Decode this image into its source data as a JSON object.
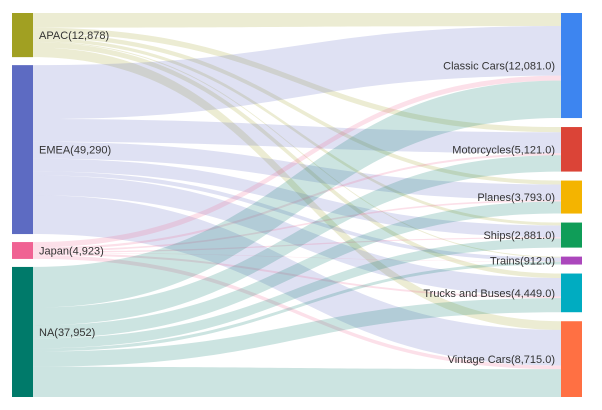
{
  "chart_data": {
    "type": "sankey",
    "left_nodes": [
      {
        "id": "APAC",
        "label": "APAC(12,878)",
        "value": 12878,
        "color": "#A1A022"
      },
      {
        "id": "EMEA",
        "label": "EMEA(49,290)",
        "value": 49290,
        "color": "#5D6BC2"
      },
      {
        "id": "Japan",
        "label": "Japan(4,923)",
        "value": 4923,
        "color": "#F06293"
      },
      {
        "id": "NA",
        "label": "NA(37,952)",
        "value": 37952,
        "color": "#007A6A"
      }
    ],
    "right_nodes": [
      {
        "id": "Classic Cars",
        "label": "Classic Cars(12,081.0)",
        "value": 12081.0,
        "color": "#3D85F0"
      },
      {
        "id": "Motorcycles",
        "label": "Motorcycles(5,121.0)",
        "value": 5121.0,
        "color": "#DB4437"
      },
      {
        "id": "Planes",
        "label": "Planes(3,793.0)",
        "value": 3793.0,
        "color": "#F4B400"
      },
      {
        "id": "Ships",
        "label": "Ships(2,881.0)",
        "value": 2881.0,
        "color": "#0F9D58"
      },
      {
        "id": "Trains",
        "label": "Trains(912.0)",
        "value": 912.0,
        "color": "#AB47BC"
      },
      {
        "id": "Trucks and Buses",
        "label": "Trucks and Buses(4,449.0)",
        "value": 4449.0,
        "color": "#00ACC1"
      },
      {
        "id": "Vintage Cars",
        "label": "Vintage Cars(8,715.0)",
        "value": 8715.0,
        "color": "#FF7043"
      }
    ],
    "links": [
      {
        "source": "APAC",
        "target": "Classic Cars",
        "value": 1500
      },
      {
        "source": "APAC",
        "target": "Motorcycles",
        "value": 600
      },
      {
        "source": "APAC",
        "target": "Planes",
        "value": 450
      },
      {
        "source": "APAC",
        "target": "Ships",
        "value": 340
      },
      {
        "source": "APAC",
        "target": "Trains",
        "value": 110
      },
      {
        "source": "APAC",
        "target": "Trucks and Buses",
        "value": 520
      },
      {
        "source": "APAC",
        "target": "Vintage Cars",
        "value": 1000
      },
      {
        "source": "EMEA",
        "target": "Classic Cars",
        "value": 5700
      },
      {
        "source": "EMEA",
        "target": "Motorcycles",
        "value": 2400
      },
      {
        "source": "EMEA",
        "target": "Planes",
        "value": 1780
      },
      {
        "source": "EMEA",
        "target": "Ships",
        "value": 1350
      },
      {
        "source": "EMEA",
        "target": "Trains",
        "value": 430
      },
      {
        "source": "EMEA",
        "target": "Trucks and Buses",
        "value": 2100
      },
      {
        "source": "EMEA",
        "target": "Vintage Cars",
        "value": 4100
      },
      {
        "source": "Japan",
        "target": "Classic Cars",
        "value": 580
      },
      {
        "source": "Japan",
        "target": "Motorcycles",
        "value": 240
      },
      {
        "source": "Japan",
        "target": "Planes",
        "value": 180
      },
      {
        "source": "Japan",
        "target": "Ships",
        "value": 140
      },
      {
        "source": "Japan",
        "target": "Trains",
        "value": 44
      },
      {
        "source": "Japan",
        "target": "Trucks and Buses",
        "value": 214
      },
      {
        "source": "Japan",
        "target": "Vintage Cars",
        "value": 415
      },
      {
        "source": "NA",
        "target": "Classic Cars",
        "value": 4301
      },
      {
        "source": "NA",
        "target": "Motorcycles",
        "value": 1881
      },
      {
        "source": "NA",
        "target": "Planes",
        "value": 1383
      },
      {
        "source": "NA",
        "target": "Ships",
        "value": 1051
      },
      {
        "source": "NA",
        "target": "Trains",
        "value": 328
      },
      {
        "source": "NA",
        "target": "Trucks and Buses",
        "value": 1615
      },
      {
        "source": "NA",
        "target": "Vintage Cars",
        "value": 3200
      }
    ]
  }
}
